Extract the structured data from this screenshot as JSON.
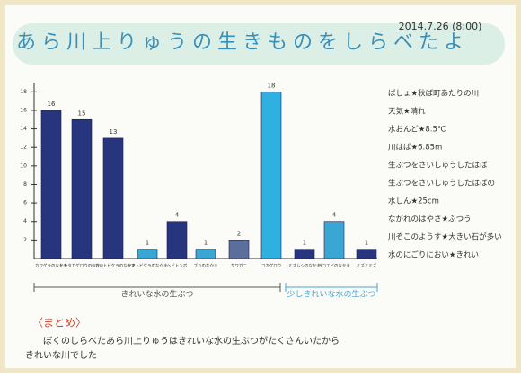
{
  "chart_data": {
    "type": "bar",
    "title": "あら川上りゅうの生きものをしらべたよ",
    "date": "2014.7.26 (8:00)",
    "categories": [
      "カワゲラのなかま",
      "ヒラタカゲロウのなかま",
      "ナガレトビケラのなかま",
      "ヤマトビケラのなかま",
      "ヘビトンボ",
      "ブユのなかま",
      "サワガニ",
      "コカゲロウ",
      "ミズムシのなかま",
      "ヨコエビのなかま",
      "ミズミミズ"
    ],
    "values": [
      16,
      15,
      13,
      1,
      4,
      1,
      2,
      18,
      1,
      4,
      1
    ],
    "colors": [
      "#27357e",
      "#27357e",
      "#27357e",
      "#3aa6d4",
      "#27357e",
      "#3aa6d4",
      "#5c6f9c",
      "#2fb0e0",
      "#27357e",
      "#3aa6d4",
      "#27357e"
    ],
    "groups": [
      "きれいな水の生ぶつ",
      "少しきれいな水の生ぶつ"
    ],
    "ylim": [
      0,
      19
    ],
    "yticks": [
      2,
      4,
      6,
      8,
      10,
      12,
      14,
      16,
      18
    ]
  },
  "notes": [
    "ばしょ★秋ば町あたりの川",
    "天気★晴れ",
    "水おんど★8.5℃",
    "川はば★6.85m",
    "生ぶつをさいしゅうしたはば",
    "生ぶつをさいしゅうしたはばの",
    "水しん★25cm",
    "ながれのはやさ★ふつう",
    "川ぞこのようす★大きい石が多い",
    "水のにごりにおい★きれい"
  ],
  "summary": {
    "heading": "〈まとめ〉",
    "lines": [
      "ぼくのしらべたあら川上りゅうはきれいな水の生ぶつがたくさんいたから",
      "きれいな川でした"
    ]
  }
}
